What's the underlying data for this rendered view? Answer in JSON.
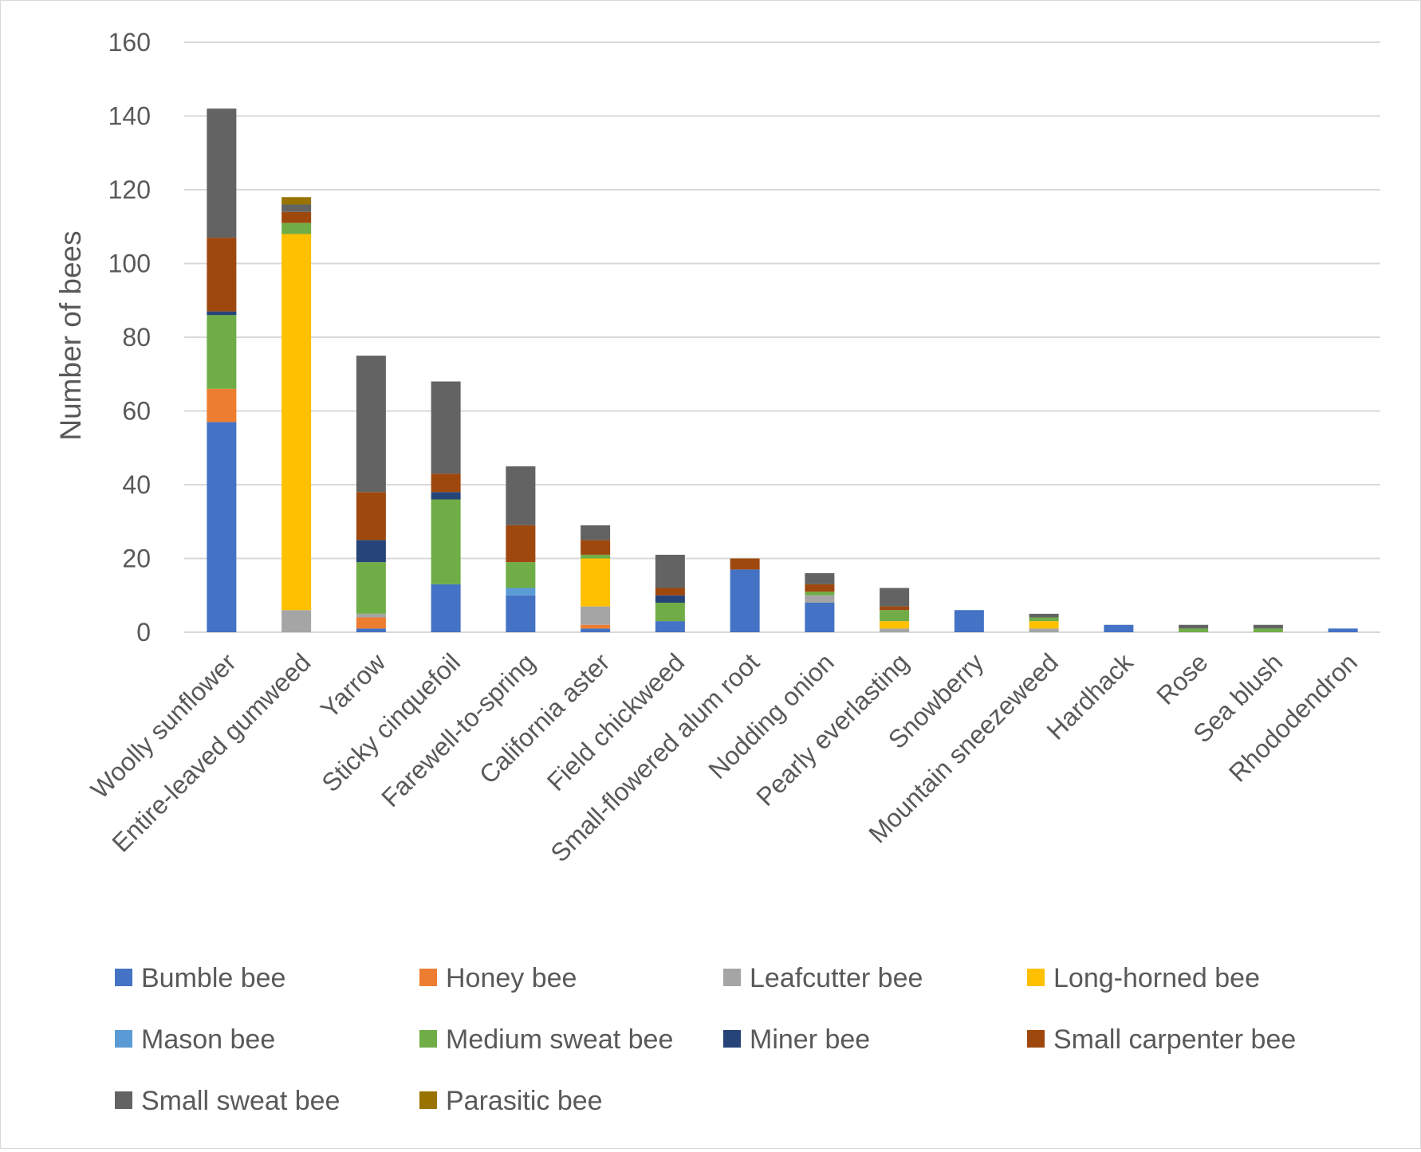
{
  "chart_data": {
    "type": "bar",
    "stacked": true,
    "title": "",
    "xlabel": "",
    "ylabel": "Number of bees",
    "ylim": [
      0,
      160
    ],
    "yticks": [
      0,
      20,
      40,
      60,
      80,
      100,
      120,
      140,
      160
    ],
    "grid": true,
    "legend_position": "bottom",
    "categories": [
      "Woolly sunflower",
      "Entire-leaved gumweed",
      "Yarrow",
      "Sticky cinquefoil",
      "Farewell-to-spring",
      "California aster",
      "Field chickweed",
      "Small-flowered alum root",
      "Nodding onion",
      "Pearly everlasting",
      "Snowberry",
      "Mountain sneezeweed",
      "Hardhack",
      "Rose",
      "Sea blush",
      "Rhododendron"
    ],
    "series": [
      {
        "name": "Bumble bee",
        "color": "#4472C4",
        "values": [
          57,
          0,
          1,
          13,
          10,
          1,
          3,
          17,
          8,
          0,
          6,
          0,
          2,
          0,
          0,
          1
        ]
      },
      {
        "name": "Honey bee",
        "color": "#ED7D31",
        "values": [
          9,
          0,
          3,
          0,
          0,
          1,
          0,
          0,
          0,
          0,
          0,
          0,
          0,
          0,
          0,
          0
        ]
      },
      {
        "name": "Leafcutter bee",
        "color": "#A5A5A5",
        "values": [
          0,
          6,
          1,
          0,
          0,
          5,
          0,
          0,
          2,
          1,
          0,
          1,
          0,
          0,
          0,
          0
        ]
      },
      {
        "name": "Long-horned bee",
        "color": "#FFC000",
        "values": [
          0,
          102,
          0,
          0,
          0,
          13,
          0,
          0,
          0,
          2,
          0,
          2,
          0,
          0,
          0,
          0
        ]
      },
      {
        "name": "Mason bee",
        "color": "#5B9BD5",
        "values": [
          0,
          0,
          0,
          0,
          2,
          0,
          0,
          0,
          0,
          0,
          0,
          0,
          0,
          0,
          0,
          0
        ]
      },
      {
        "name": "Medium sweat bee",
        "color": "#70AD47",
        "values": [
          20,
          3,
          14,
          23,
          7,
          1,
          5,
          0,
          1,
          3,
          0,
          1,
          0,
          1,
          1,
          0
        ]
      },
      {
        "name": "Miner bee",
        "color": "#264478",
        "values": [
          1,
          0,
          6,
          2,
          0,
          0,
          2,
          0,
          0,
          0,
          0,
          0,
          0,
          0,
          0,
          0
        ]
      },
      {
        "name": "Small carpenter bee",
        "color": "#9E480E",
        "values": [
          20,
          3,
          13,
          5,
          10,
          4,
          2,
          3,
          2,
          1,
          0,
          0,
          0,
          0,
          0,
          0
        ]
      },
      {
        "name": "Small sweat bee",
        "color": "#636363",
        "values": [
          35,
          2,
          37,
          25,
          16,
          4,
          9,
          0,
          3,
          5,
          0,
          1,
          0,
          1,
          1,
          0
        ]
      },
      {
        "name": "Parasitic bee",
        "color": "#997300",
        "values": [
          0,
          2,
          0,
          0,
          0,
          0,
          0,
          0,
          0,
          0,
          0,
          0,
          0,
          0,
          0,
          0
        ]
      }
    ]
  }
}
